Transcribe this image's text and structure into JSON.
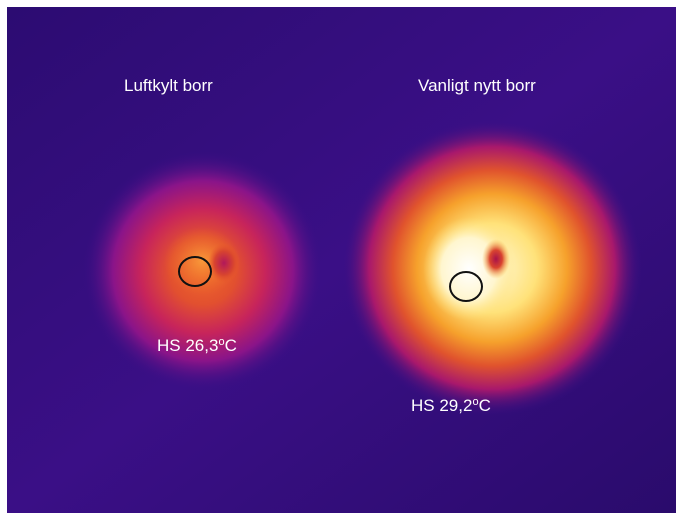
{
  "image": {
    "left_drill": {
      "title": "Luftkylt borr",
      "hotspot_prefix": "HS 26,3",
      "hotspot_degree": "o",
      "hotspot_unit": "C"
    },
    "right_drill": {
      "title": "Vanligt nytt borr",
      "hotspot_prefix": "HS 29,2",
      "hotspot_degree": "o",
      "hotspot_unit": "C"
    }
  }
}
